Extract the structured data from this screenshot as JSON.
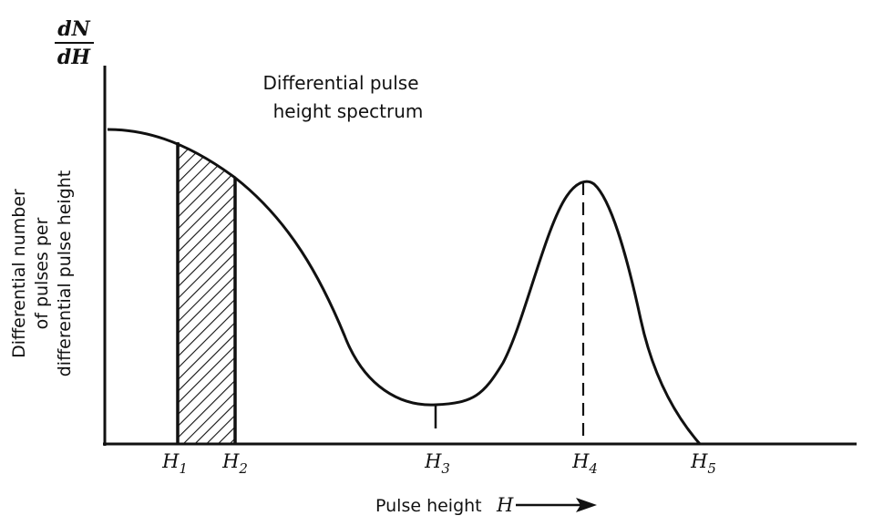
{
  "figure": {
    "y_axis_symbol": {
      "numerator": "dN",
      "denominator": "dH"
    },
    "y_axis_label": [
      "Differential number",
      "of pulses per",
      "differential pulse height"
    ],
    "curve_label": [
      "Differential pulse",
      "height spectrum"
    ],
    "x_axis_label": "Pulse height",
    "x_axis_symbol": "H",
    "markers": [
      {
        "letter": "H",
        "sub": "1"
      },
      {
        "letter": "H",
        "sub": "2"
      },
      {
        "letter": "H",
        "sub": "3"
      },
      {
        "letter": "H",
        "sub": "4"
      },
      {
        "letter": "H",
        "sub": "5"
      }
    ]
  }
}
